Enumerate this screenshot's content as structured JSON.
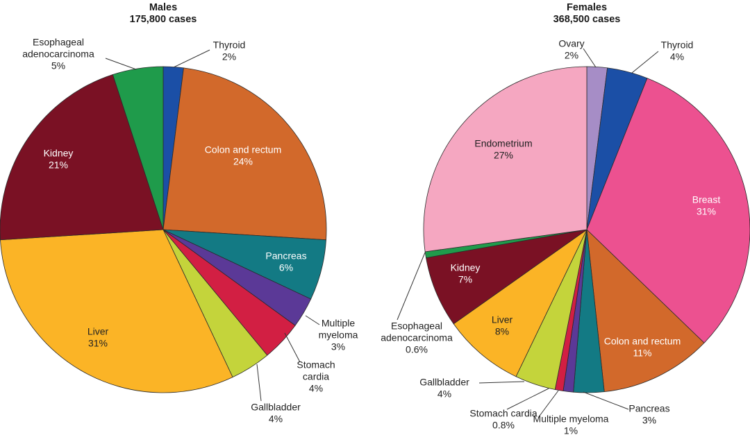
{
  "chart_data": [
    {
      "type": "pie",
      "title": "Males",
      "subtitle": "175,800 cases",
      "start": "12 o'clock, clockwise",
      "slices": [
        {
          "name": [
            "Thyroid"
          ],
          "value": 2,
          "label": "2%",
          "color": "#1b4fa6"
        },
        {
          "name": [
            "Colon and rectum"
          ],
          "value": 24,
          "label": "24%",
          "color": "#d2692b"
        },
        {
          "name": [
            "Pancreas"
          ],
          "value": 6,
          "label": "6%",
          "color": "#137a84"
        },
        {
          "name": [
            "Multiple",
            "myeloma"
          ],
          "value": 3,
          "label": "3%",
          "color": "#5b3997"
        },
        {
          "name": [
            "Stomach",
            "cardia"
          ],
          "value": 4,
          "label": "4%",
          "color": "#d21f43"
        },
        {
          "name": [
            "Gallbladder"
          ],
          "value": 4,
          "label": "4%",
          "color": "#c4d43b"
        },
        {
          "name": [
            "Liver"
          ],
          "value": 31,
          "label": "31%",
          "color": "#fbb426"
        },
        {
          "name": [
            "Kidney"
          ],
          "value": 21,
          "label": "21%",
          "color": "#7a1124"
        },
        {
          "name": [
            "Esophageal",
            "adenocarcinoma"
          ],
          "value": 5,
          "label": "5%",
          "color": "#1f9b4b"
        }
      ]
    },
    {
      "type": "pie",
      "title": "Females",
      "subtitle": "368,500 cases",
      "start": "12 o'clock, clockwise",
      "slices": [
        {
          "name": [
            "Ovary"
          ],
          "value": 2,
          "label": "2%",
          "color": "#a68dc6"
        },
        {
          "name": [
            "Thyroid"
          ],
          "value": 4,
          "label": "4%",
          "color": "#1b4fa6"
        },
        {
          "name": [
            "Breast"
          ],
          "value": 31,
          "label": "31%",
          "color": "#ec5190"
        },
        {
          "name": [
            "Colon and rectum"
          ],
          "value": 11,
          "label": "11%",
          "color": "#d2692b"
        },
        {
          "name": [
            "Pancreas"
          ],
          "value": 3,
          "label": "3%",
          "color": "#137a84"
        },
        {
          "name": [
            "Multiple myeloma"
          ],
          "value": 1,
          "label": "1%",
          "color": "#5b3997"
        },
        {
          "name": [
            "Stomach cardia"
          ],
          "value": 0.8,
          "label": "0.8%",
          "color": "#d21f43"
        },
        {
          "name": [
            "Gallbladder"
          ],
          "value": 4,
          "label": "4%",
          "color": "#c4d43b"
        },
        {
          "name": [
            "Liver"
          ],
          "value": 8,
          "label": "8%",
          "color": "#fbb426"
        },
        {
          "name": [
            "Kidney"
          ],
          "value": 7,
          "label": "7%",
          "color": "#7a1124"
        },
        {
          "name": [
            "Esophageal",
            "adenocarcinoma"
          ],
          "value": 0.6,
          "label": "0.6%",
          "color": "#1f9b4b"
        },
        {
          "name": [
            "Endometrium"
          ],
          "value": 27,
          "label": "27%",
          "color": "#f5a7c1"
        }
      ]
    }
  ]
}
